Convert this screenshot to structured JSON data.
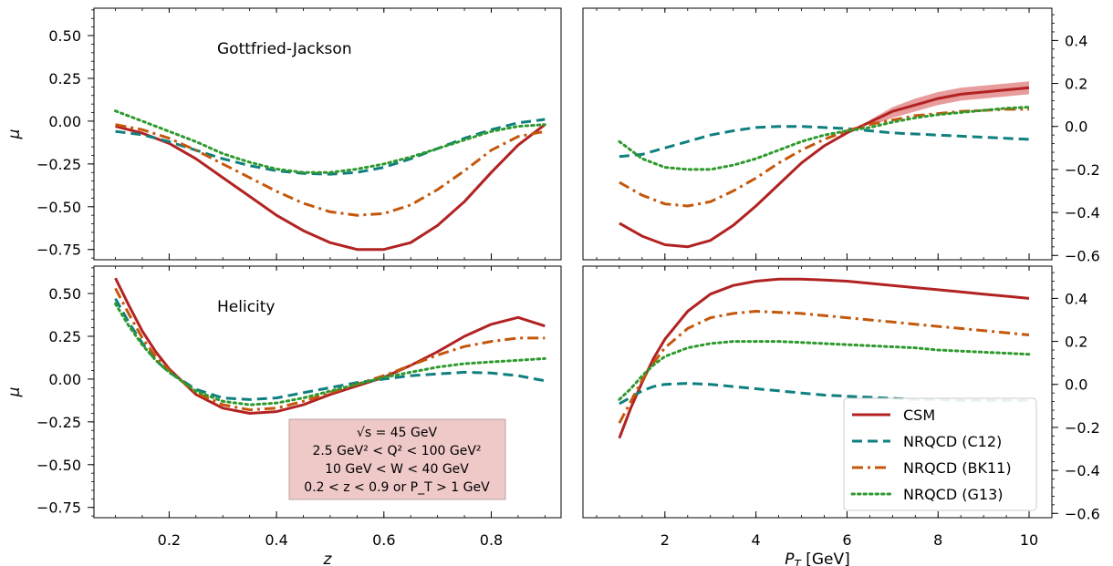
{
  "figure": {
    "info_box": {
      "lines": [
        "√s = 45 GeV",
        "2.5 GeV² < Q² < 100 GeV²",
        "10 GeV < W < 40 GeV",
        "0.2 < z < 0.9 or P_T > 1 GeV"
      ],
      "fill": "#efc9c8",
      "edge": "#b9a3a3"
    },
    "legend": {
      "placement": "bottom-right",
      "entries": [
        {
          "label": "CSM",
          "color": "#b22222",
          "dash": "solid"
        },
        {
          "label": "NRQCD (C12)",
          "color": "#0f7f7f",
          "dash": "dashed"
        },
        {
          "label": "NRQCD (BK11)",
          "color": "#c4570b",
          "dash": "dashdot"
        },
        {
          "label": "NRQCD (G13)",
          "color": "#2e9a2e",
          "dash": "dotted"
        }
      ]
    }
  },
  "chart_data": [
    {
      "type": "line",
      "panel": "top-left",
      "annotation": "Gottfried-Jackson",
      "xlabel": "",
      "ylabel": "μ",
      "xlim": [
        0.06,
        0.93
      ],
      "ylim": [
        -0.81,
        0.66
      ],
      "xticks": [
        0.2,
        0.4,
        0.6,
        0.8
      ],
      "yticks": [
        -0.75,
        -0.5,
        -0.25,
        0.0,
        0.25,
        0.5
      ],
      "ytick_labels": [
        "−0.75",
        "−0.50",
        "−0.25",
        "0.00",
        "0.25",
        "0.50"
      ],
      "x_ticklabels_visible": false,
      "series": [
        {
          "name": "CSM",
          "color": "#b22222",
          "dash": "solid",
          "x": [
            0.1,
            0.15,
            0.2,
            0.25,
            0.3,
            0.35,
            0.4,
            0.45,
            0.5,
            0.55,
            0.6,
            0.65,
            0.7,
            0.75,
            0.8,
            0.85,
            0.9
          ],
          "y": [
            -0.03,
            -0.07,
            -0.13,
            -0.22,
            -0.33,
            -0.44,
            -0.55,
            -0.64,
            -0.71,
            -0.75,
            -0.75,
            -0.71,
            -0.61,
            -0.47,
            -0.3,
            -0.14,
            -0.02
          ]
        },
        {
          "name": "NRQCD (C12)",
          "color": "#0f7f7f",
          "dash": "dashed",
          "x": [
            0.1,
            0.15,
            0.2,
            0.25,
            0.3,
            0.35,
            0.4,
            0.45,
            0.5,
            0.55,
            0.6,
            0.65,
            0.7,
            0.75,
            0.8,
            0.85,
            0.9
          ],
          "y": [
            -0.06,
            -0.08,
            -0.12,
            -0.17,
            -0.22,
            -0.26,
            -0.29,
            -0.305,
            -0.31,
            -0.3,
            -0.27,
            -0.22,
            -0.16,
            -0.1,
            -0.05,
            -0.01,
            0.01
          ]
        },
        {
          "name": "NRQCD (BK11)",
          "color": "#c4570b",
          "dash": "dashdot",
          "x": [
            0.1,
            0.15,
            0.2,
            0.25,
            0.3,
            0.35,
            0.4,
            0.45,
            0.5,
            0.55,
            0.6,
            0.65,
            0.7,
            0.75,
            0.8,
            0.85,
            0.9
          ],
          "y": [
            -0.02,
            -0.05,
            -0.1,
            -0.17,
            -0.25,
            -0.33,
            -0.41,
            -0.48,
            -0.53,
            -0.55,
            -0.54,
            -0.49,
            -0.4,
            -0.29,
            -0.17,
            -0.09,
            -0.06
          ]
        },
        {
          "name": "NRQCD (G13)",
          "color": "#2e9a2e",
          "dash": "dotted",
          "x": [
            0.1,
            0.15,
            0.2,
            0.25,
            0.3,
            0.35,
            0.4,
            0.45,
            0.5,
            0.55,
            0.6,
            0.65,
            0.7,
            0.75,
            0.8,
            0.85,
            0.9
          ],
          "y": [
            0.06,
            0.0,
            -0.06,
            -0.12,
            -0.19,
            -0.24,
            -0.28,
            -0.3,
            -0.3,
            -0.28,
            -0.25,
            -0.21,
            -0.16,
            -0.11,
            -0.06,
            -0.03,
            -0.02
          ]
        }
      ]
    },
    {
      "type": "line",
      "panel": "top-right",
      "xlabel": "",
      "ylabel": "",
      "xlim": [
        0.2,
        10.5
      ],
      "ylim": [
        -0.62,
        0.55
      ],
      "xticks": [
        2,
        4,
        6,
        8,
        10
      ],
      "yticks": [
        -0.6,
        -0.4,
        -0.2,
        0.0,
        0.2,
        0.4
      ],
      "ytick_labels": [
        "−0.6",
        "−0.4",
        "−0.2",
        "0.0",
        "0.2",
        "0.4"
      ],
      "x_ticklabels_visible": false,
      "y_axis_side": "right",
      "series": [
        {
          "name": "CSM",
          "color": "#b22222",
          "dash": "solid",
          "x": [
            1,
            1.5,
            2,
            2.5,
            3,
            3.5,
            4,
            4.5,
            5,
            5.5,
            6,
            6.5,
            7,
            7.5,
            8,
            8.5,
            9,
            9.5,
            10
          ],
          "y": [
            -0.45,
            -0.51,
            -0.55,
            -0.56,
            -0.53,
            -0.46,
            -0.37,
            -0.27,
            -0.17,
            -0.09,
            -0.03,
            0.02,
            0.07,
            0.1,
            0.13,
            0.15,
            0.16,
            0.17,
            0.18
          ],
          "band": {
            "color": "#e07b7b",
            "x": [
              6.5,
              7,
              7.5,
              8,
              8.5,
              9,
              9.5,
              10
            ],
            "lower": [
              0.0,
              0.04,
              0.07,
              0.1,
              0.12,
              0.13,
              0.14,
              0.15
            ],
            "upper": [
              0.03,
              0.09,
              0.13,
              0.16,
              0.18,
              0.19,
              0.2,
              0.21
            ]
          }
        },
        {
          "name": "NRQCD (C12)",
          "color": "#0f7f7f",
          "dash": "dashed",
          "x": [
            1,
            1.5,
            2,
            2.5,
            3,
            3.5,
            4,
            4.5,
            5,
            5.5,
            6,
            6.5,
            7,
            7.5,
            8,
            8.5,
            9,
            9.5,
            10
          ],
          "y": [
            -0.14,
            -0.13,
            -0.1,
            -0.07,
            -0.04,
            -0.02,
            -0.005,
            0.0,
            0.0,
            -0.005,
            -0.01,
            -0.02,
            -0.03,
            -0.035,
            -0.04,
            -0.045,
            -0.05,
            -0.055,
            -0.06
          ]
        },
        {
          "name": "NRQCD (BK11)",
          "color": "#c4570b",
          "dash": "dashdot",
          "x": [
            1,
            1.5,
            2,
            2.5,
            3,
            3.5,
            4,
            4.5,
            5,
            5.5,
            6,
            6.5,
            7,
            7.5,
            8,
            8.5,
            9,
            9.5,
            10
          ],
          "y": [
            -0.26,
            -0.32,
            -0.36,
            -0.37,
            -0.35,
            -0.3,
            -0.24,
            -0.17,
            -0.11,
            -0.06,
            -0.02,
            0.01,
            0.03,
            0.05,
            0.06,
            0.07,
            0.075,
            0.08,
            0.08
          ]
        },
        {
          "name": "NRQCD (G13)",
          "color": "#2e9a2e",
          "dash": "dotted",
          "x": [
            1,
            1.5,
            2,
            2.5,
            3,
            3.5,
            4,
            4.5,
            5,
            5.5,
            6,
            6.5,
            7,
            7.5,
            8,
            8.5,
            9,
            9.5,
            10
          ],
          "y": [
            -0.07,
            -0.15,
            -0.19,
            -0.2,
            -0.2,
            -0.18,
            -0.15,
            -0.11,
            -0.07,
            -0.04,
            -0.02,
            -0.005,
            0.02,
            0.04,
            0.055,
            0.065,
            0.075,
            0.085,
            0.09
          ]
        }
      ]
    },
    {
      "type": "line",
      "panel": "bottom-left",
      "annotation": "Helicity",
      "xlabel": "z",
      "ylabel": "μ",
      "xlim": [
        0.06,
        0.93
      ],
      "ylim": [
        -0.81,
        0.66
      ],
      "xticks": [
        0.2,
        0.4,
        0.6,
        0.8
      ],
      "xtick_labels": [
        "0.2",
        "0.4",
        "0.6",
        "0.8"
      ],
      "yticks": [
        -0.75,
        -0.5,
        -0.25,
        0.0,
        0.25,
        0.5
      ],
      "ytick_labels": [
        "−0.75",
        "−0.50",
        "−0.25",
        "0.00",
        "0.25",
        "0.50"
      ],
      "series": [
        {
          "name": "CSM",
          "color": "#b22222",
          "dash": "solid",
          "x": [
            0.1,
            0.125,
            0.15,
            0.175,
            0.2,
            0.25,
            0.3,
            0.35,
            0.4,
            0.45,
            0.5,
            0.55,
            0.6,
            0.65,
            0.7,
            0.75,
            0.8,
            0.85,
            0.9
          ],
          "y": [
            0.59,
            0.43,
            0.28,
            0.16,
            0.06,
            -0.09,
            -0.17,
            -0.2,
            -0.19,
            -0.15,
            -0.09,
            -0.04,
            0.01,
            0.08,
            0.16,
            0.25,
            0.32,
            0.36,
            0.31
          ]
        },
        {
          "name": "NRQCD (C12)",
          "color": "#0f7f7f",
          "dash": "dashed",
          "x": [
            0.1,
            0.125,
            0.15,
            0.175,
            0.2,
            0.25,
            0.3,
            0.35,
            0.4,
            0.45,
            0.5,
            0.55,
            0.6,
            0.65,
            0.7,
            0.75,
            0.8,
            0.85,
            0.9
          ],
          "y": [
            0.47,
            0.33,
            0.21,
            0.11,
            0.04,
            -0.06,
            -0.11,
            -0.12,
            -0.11,
            -0.08,
            -0.05,
            -0.02,
            0.0,
            0.02,
            0.03,
            0.04,
            0.035,
            0.02,
            -0.01
          ]
        },
        {
          "name": "NRQCD (BK11)",
          "color": "#c4570b",
          "dash": "dashdot",
          "x": [
            0.1,
            0.125,
            0.15,
            0.175,
            0.2,
            0.25,
            0.3,
            0.35,
            0.4,
            0.45,
            0.5,
            0.55,
            0.6,
            0.65,
            0.7,
            0.75,
            0.8,
            0.85,
            0.9
          ],
          "y": [
            0.53,
            0.38,
            0.24,
            0.13,
            0.05,
            -0.08,
            -0.15,
            -0.18,
            -0.17,
            -0.13,
            -0.08,
            -0.03,
            0.02,
            0.08,
            0.14,
            0.19,
            0.22,
            0.24,
            0.24
          ]
        },
        {
          "name": "NRQCD (G13)",
          "color": "#2e9a2e",
          "dash": "dotted",
          "x": [
            0.1,
            0.125,
            0.15,
            0.175,
            0.2,
            0.25,
            0.3,
            0.35,
            0.4,
            0.45,
            0.5,
            0.55,
            0.6,
            0.65,
            0.7,
            0.75,
            0.8,
            0.85,
            0.9
          ],
          "y": [
            0.44,
            0.31,
            0.2,
            0.11,
            0.04,
            -0.07,
            -0.13,
            -0.15,
            -0.14,
            -0.11,
            -0.07,
            -0.03,
            0.01,
            0.04,
            0.07,
            0.09,
            0.1,
            0.11,
            0.12
          ]
        }
      ]
    },
    {
      "type": "line",
      "panel": "bottom-right",
      "xlabel": "P_T [GeV]",
      "ylabel": "",
      "xlim": [
        0.2,
        10.5
      ],
      "ylim": [
        -0.62,
        0.55
      ],
      "xticks": [
        2,
        4,
        6,
        8,
        10
      ],
      "xtick_labels": [
        "2",
        "4",
        "6",
        "8",
        "10"
      ],
      "yticks": [
        -0.6,
        -0.4,
        -0.2,
        0.0,
        0.2,
        0.4
      ],
      "ytick_labels": [
        "−0.6",
        "−0.4",
        "−0.2",
        "0.0",
        "0.2",
        "0.4"
      ],
      "y_axis_side": "right",
      "series": [
        {
          "name": "CSM",
          "color": "#b22222",
          "dash": "solid",
          "x": [
            1,
            1.25,
            1.5,
            1.75,
            2,
            2.5,
            3,
            3.5,
            4,
            4.5,
            5,
            5.5,
            6,
            6.5,
            7,
            7.5,
            8,
            8.5,
            9,
            9.5,
            10
          ],
          "y": [
            -0.25,
            -0.11,
            0.01,
            0.12,
            0.21,
            0.34,
            0.42,
            0.46,
            0.48,
            0.49,
            0.49,
            0.485,
            0.48,
            0.47,
            0.46,
            0.45,
            0.44,
            0.43,
            0.42,
            0.41,
            0.4
          ]
        },
        {
          "name": "NRQCD (C12)",
          "color": "#0f7f7f",
          "dash": "dashed",
          "x": [
            1,
            1.25,
            1.5,
            1.75,
            2,
            2.5,
            3,
            3.5,
            4,
            4.5,
            5,
            5.5,
            6,
            6.5,
            7,
            7.5,
            8,
            8.5,
            9,
            9.5,
            10
          ],
          "y": [
            -0.09,
            -0.06,
            -0.03,
            -0.01,
            0.0,
            0.005,
            0.0,
            -0.01,
            -0.02,
            -0.03,
            -0.04,
            -0.05,
            -0.055,
            -0.06,
            -0.065,
            -0.07,
            -0.07,
            -0.075,
            -0.075,
            -0.075,
            -0.075
          ]
        },
        {
          "name": "NRQCD (BK11)",
          "color": "#c4570b",
          "dash": "dashdot",
          "x": [
            1,
            1.25,
            1.5,
            1.75,
            2,
            2.5,
            3,
            3.5,
            4,
            4.5,
            5,
            5.5,
            6,
            6.5,
            7,
            7.5,
            8,
            8.5,
            9,
            9.5,
            10
          ],
          "y": [
            -0.18,
            -0.08,
            0.02,
            0.1,
            0.17,
            0.26,
            0.31,
            0.33,
            0.34,
            0.335,
            0.33,
            0.32,
            0.31,
            0.3,
            0.29,
            0.28,
            0.27,
            0.26,
            0.25,
            0.24,
            0.23
          ]
        },
        {
          "name": "NRQCD (G13)",
          "color": "#2e9a2e",
          "dash": "dotted",
          "x": [
            1,
            1.25,
            1.5,
            1.75,
            2,
            2.5,
            3,
            3.5,
            4,
            4.5,
            5,
            5.5,
            6,
            6.5,
            7,
            7.5,
            8,
            8.5,
            9,
            9.5,
            10
          ],
          "y": [
            -0.07,
            -0.02,
            0.04,
            0.09,
            0.13,
            0.17,
            0.19,
            0.2,
            0.2,
            0.2,
            0.195,
            0.19,
            0.185,
            0.18,
            0.175,
            0.17,
            0.16,
            0.155,
            0.15,
            0.145,
            0.14
          ]
        }
      ]
    }
  ]
}
